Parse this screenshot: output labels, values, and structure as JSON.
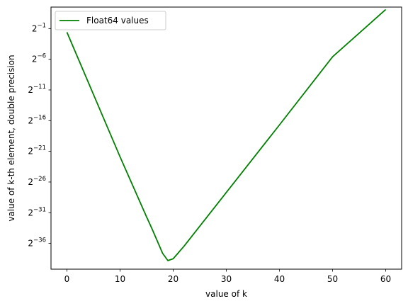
{
  "chart_data": {
    "type": "line",
    "title": "",
    "xlabel": "value of k",
    "ylabel": "value of k-th element, double precision",
    "xlim": [
      -3,
      63
    ],
    "x_ticks": [
      0,
      10,
      20,
      30,
      40,
      50,
      60
    ],
    "y_scale": "log2",
    "ylim_log2": [
      -40.2,
      2.5
    ],
    "y_ticks_exponents": [
      -1,
      -6,
      -11,
      -16,
      -21,
      -26,
      -31,
      -36
    ],
    "y_tick_base": "2",
    "grid": false,
    "legend": {
      "placement": "top-left",
      "entries": [
        "Float64 values"
      ]
    },
    "series": [
      {
        "name": "Float64 values",
        "color": "#008000",
        "x": [
          0,
          10,
          15,
          16,
          17,
          18,
          19,
          20,
          21,
          22,
          30,
          40,
          50,
          60
        ],
        "y_log2": [
          -1.6,
          -21.9,
          -31.7,
          -33.6,
          -35.6,
          -37.6,
          -38.8,
          -38.5,
          -37.5,
          -36.5,
          -27.7,
          -16.7,
          -5.6,
          2.1
        ]
      }
    ]
  }
}
